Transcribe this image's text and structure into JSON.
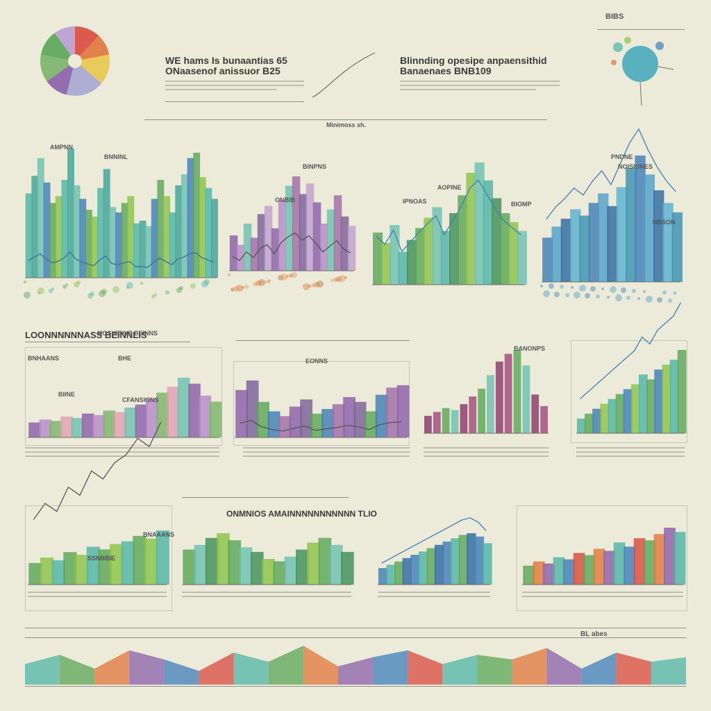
{
  "header": {
    "left_title": [
      "WE hams Is bunaantias 65",
      "ONaasenof anissuor B25"
    ],
    "right_title": [
      "Blinnding opesipe anpaensithid",
      "Banaenaes BNB109"
    ],
    "center_caption": "Minimoss sh.",
    "top_right_label": "BIBS"
  },
  "sections": {
    "row2_title": "LOONNNNNNASS BEINNLIS",
    "row2_subtitle": "MOSHIBIYE BEINNS",
    "row3_title": "ONMNIOS AMAINNNNNNNNNNN TLIO",
    "row4_label": "BL abes"
  },
  "chart_labels": {
    "row1": [
      "AMPNN",
      "BNNINL",
      "BINPNS",
      "ONBIB",
      "IPNOAS",
      "AOPINE",
      "BIOMP",
      "PNDNE",
      "NOISIONES",
      "NBSON"
    ],
    "row2": [
      "BNHAANS",
      "BHE",
      "EONNS",
      "BIINE",
      "CFANSIONS",
      "BANONPS"
    ],
    "row3": [
      "SSNBBIE",
      "BNAAANS"
    ]
  },
  "colors": {
    "background": "#ecebd9",
    "teal": "#4fb5a6",
    "blue": "#3f7fb8",
    "green": "#5aa657",
    "lime": "#8cc24a",
    "purple": "#8b5fa8",
    "plum": "#8a3a6a",
    "orange": "#e0773a",
    "red": "#d94a3d",
    "yellow": "#e8c84a"
  },
  "chart_data": [
    {
      "type": "pie",
      "position": "top-left",
      "values": [
        12,
        10,
        14,
        18,
        11,
        13,
        12,
        10
      ],
      "colors": [
        "#d94a3d",
        "#e0773a",
        "#e8c84a",
        "#a7a7d4",
        "#8b5fa8",
        "#7bb36a",
        "#5aa657",
        "#b8a0d0"
      ]
    },
    {
      "type": "bar",
      "position": "row1-1",
      "values": [
        62,
        75,
        88,
        70,
        55,
        60,
        72,
        95,
        68,
        58,
        50,
        45,
        66,
        80,
        52,
        48,
        55,
        60,
        40,
        42,
        38,
        58,
        72,
        60,
        48,
        68,
        76,
        88,
        92,
        74,
        66,
        58
      ],
      "palette": [
        "#4fb5a6",
        "#3fa39a",
        "#6dc0b0",
        "#3f7fb8",
        "#5aa657",
        "#8cc24a"
      ]
    },
    {
      "type": "bar",
      "position": "row1-2",
      "values": [
        30,
        22,
        40,
        28,
        48,
        55,
        36,
        60,
        72,
        80,
        65,
        74,
        58,
        40,
        52,
        64,
        46,
        38
      ],
      "palette": [
        "#8b5fa8",
        "#b58ac8",
        "#6dc0b0",
        "#a06ba6",
        "#7a5f9a",
        "#c0a0d0"
      ]
    },
    {
      "type": "bar",
      "position": "row1-3",
      "values": [
        35,
        28,
        40,
        22,
        30,
        38,
        45,
        52,
        36,
        48,
        60,
        75,
        82,
        70,
        58,
        48,
        42,
        36
      ],
      "palette": [
        "#5aa657",
        "#8cc24a",
        "#6dc0b0",
        "#4fb5a6",
        "#3f8f5a"
      ]
    },
    {
      "type": "bar",
      "position": "row1-4",
      "values": [
        28,
        35,
        40,
        46,
        42,
        50,
        56,
        48,
        60,
        72,
        80,
        68,
        58,
        50,
        44
      ],
      "palette": [
        "#3f7fb8",
        "#4fa0c8",
        "#2f6aa0",
        "#5ab0d0",
        "#3a90b0"
      ]
    },
    {
      "type": "bar",
      "position": "row2-1",
      "values": [
        10,
        12,
        11,
        14,
        13,
        16,
        15,
        18,
        17,
        20,
        22,
        26,
        30,
        34,
        40,
        36,
        28,
        24
      ],
      "palette": [
        "#8b5fa8",
        "#b58ac8",
        "#7bb36a",
        "#e0a0b0",
        "#6dc0b0"
      ]
    },
    {
      "type": "bar",
      "position": "row2-2",
      "values": [
        40,
        48,
        30,
        22,
        18,
        26,
        32,
        20,
        24,
        28,
        34,
        30,
        22,
        36,
        42,
        44
      ],
      "palette": [
        "#8b5fa8",
        "#7a5f9a",
        "#5aa657",
        "#3f7fb8",
        "#a06ba6"
      ]
    },
    {
      "type": "bar",
      "position": "row2-3",
      "values": [
        18,
        22,
        26,
        24,
        30,
        38,
        46,
        60,
        74,
        82,
        86,
        70,
        40,
        28
      ],
      "palette": [
        "#8a3a6a",
        "#a04a7a",
        "#5aa657",
        "#6dc0b0"
      ]
    },
    {
      "type": "bar",
      "position": "row2-4",
      "values": [
        6,
        8,
        10,
        12,
        14,
        16,
        18,
        20,
        24,
        22,
        26,
        28,
        30,
        34
      ],
      "palette": [
        "#4fb5a6",
        "#5aa657",
        "#3f7fb8",
        "#8cc24a"
      ]
    },
    {
      "type": "bar",
      "position": "row3-1",
      "values": [
        8,
        10,
        9,
        12,
        11,
        14,
        13,
        15,
        16,
        18,
        17,
        20
      ],
      "palette": [
        "#5aa657",
        "#8cc24a",
        "#4fb5a6"
      ]
    },
    {
      "type": "bar",
      "position": "row3-2",
      "values": [
        30,
        34,
        40,
        44,
        38,
        32,
        28,
        22,
        20,
        24,
        30,
        36,
        40,
        34,
        28
      ],
      "palette": [
        "#5aa657",
        "#6dc0b0",
        "#3f8f5a",
        "#8cc24a"
      ]
    },
    {
      "type": "bar",
      "position": "row3-3",
      "values": [
        20,
        24,
        28,
        32,
        36,
        40,
        44,
        48,
        52,
        56,
        60,
        62,
        58,
        50
      ],
      "palette": [
        "#3f7fb8",
        "#4fb5a6",
        "#5aa657",
        "#2f6aa0"
      ]
    },
    {
      "type": "bar",
      "position": "row3-4",
      "values": [
        18,
        22,
        20,
        26,
        24,
        30,
        28,
        34,
        32,
        40,
        36,
        44,
        42,
        48,
        54,
        50
      ],
      "palette": [
        "#5aa657",
        "#e0773a",
        "#8b5fa8",
        "#4fb5a6",
        "#3f7fb8",
        "#d94a3d"
      ]
    },
    {
      "type": "area",
      "position": "bottom-band",
      "values": [
        18,
        26,
        14,
        30,
        22,
        12,
        28,
        20,
        34,
        16,
        24,
        30,
        18,
        26,
        22,
        32,
        14,
        28,
        20,
        24
      ],
      "palette": [
        "#4fb5a6",
        "#5aa657",
        "#e0773a",
        "#8b5fa8",
        "#3f7fb8",
        "#d94a3d"
      ]
    }
  ]
}
